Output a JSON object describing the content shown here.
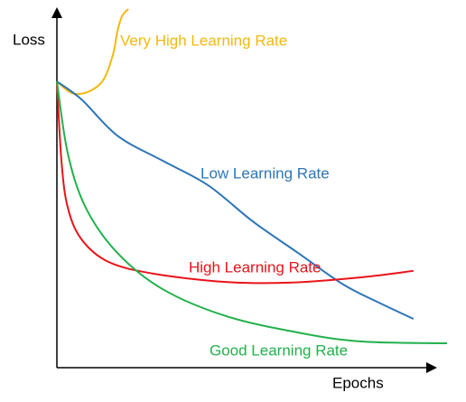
{
  "chart_data": {
    "type": "line",
    "xlabel": "Epochs",
    "ylabel": "Loss",
    "xlim": [
      0,
      100
    ],
    "ylim": [
      0,
      100
    ],
    "series": [
      {
        "name": "Very High Learning Rate",
        "color": "#f2b90f",
        "x": [
          0,
          2.8,
          5.1,
          8.6,
          12,
          14.4,
          15.5,
          16.7,
          18.3
        ],
        "values": [
          79.8,
          77.2,
          76.3,
          77.2,
          80.4,
          87.4,
          93.7,
          98,
          100
        ]
      },
      {
        "name": "Low Learning Rate",
        "color": "#2e75b6",
        "x": [
          0,
          6.3,
          15.5,
          27.1,
          38.7,
          50.2,
          61.8,
          73.4,
          82.6,
          91.4
        ],
        "values": [
          79.8,
          74.8,
          64.7,
          57.7,
          50.9,
          40.8,
          32,
          23.2,
          18.1,
          13.6
        ]
      },
      {
        "name": "High Learning Rate",
        "color": "#e8141b",
        "x": [
          0,
          1.2,
          2.8,
          6.3,
          13.2,
          24.8,
          43.3,
          59.5,
          78,
          91.4
        ],
        "values": [
          79.8,
          57.2,
          44.6,
          35.8,
          29.5,
          26.2,
          23.9,
          23.7,
          25.2,
          27
        ]
      },
      {
        "name": "Good Learning Rate",
        "color": "#22b14c",
        "x": [
          0,
          2.8,
          7.4,
          15.5,
          27.1,
          43.3,
          61.8,
          78,
          100
        ],
        "values": [
          79.8,
          59.7,
          44.6,
          32,
          21.9,
          14.4,
          9.8,
          7.3,
          6.8
        ]
      }
    ]
  }
}
